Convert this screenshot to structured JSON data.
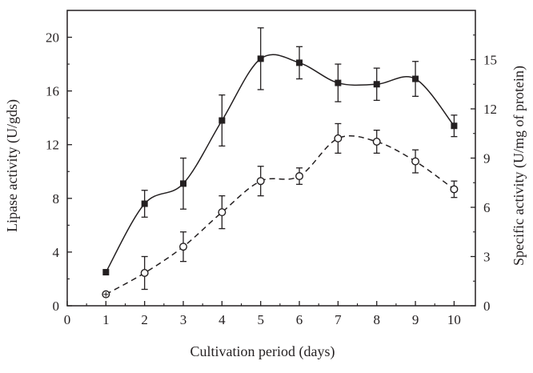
{
  "chart_data": {
    "type": "line",
    "title": "",
    "xlabel": "Cultivation period (days)",
    "ylabel": "Lipase activity (U/gds)",
    "y2label": "Specific activity (U/mg of protein)",
    "xlim": [
      0,
      10.55
    ],
    "ylim": [
      0,
      22
    ],
    "y2lim": [
      0,
      18.0
    ],
    "xticks": [
      "0",
      "1",
      "2",
      "3",
      "4",
      "5",
      "6",
      "7",
      "8",
      "9",
      "10"
    ],
    "yticks": [
      "0",
      "4",
      "8",
      "12",
      "16",
      "20"
    ],
    "y2ticks": [
      "0",
      "3",
      "6",
      "9",
      "12",
      "15"
    ],
    "series": [
      {
        "name": "Lipase activity",
        "axis": "left",
        "marker": "filled-square",
        "line": "solid",
        "x": [
          1,
          2,
          3,
          4,
          5,
          6,
          7,
          8,
          9,
          10
        ],
        "values": [
          2.5,
          7.6,
          9.1,
          13.8,
          18.4,
          18.1,
          16.6,
          16.5,
          16.9,
          13.4
        ],
        "errors": [
          0,
          1.0,
          1.9,
          1.9,
          2.3,
          1.2,
          1.4,
          1.2,
          1.3,
          0.8
        ]
      },
      {
        "name": "Specific activity",
        "axis": "right",
        "marker": "open-circle",
        "line": "dashed",
        "x": [
          1,
          2,
          3,
          4,
          5,
          6,
          7,
          8,
          9,
          10
        ],
        "values": [
          0.7,
          2.0,
          3.6,
          5.7,
          7.6,
          7.9,
          10.2,
          10.0,
          8.8,
          7.1
        ],
        "errors": [
          0,
          1.0,
          0.9,
          1.0,
          0.9,
          0.5,
          0.9,
          0.7,
          0.7,
          0.5
        ]
      }
    ]
  },
  "colors": {
    "ink": "#231f20",
    "background": "#ffffff"
  }
}
